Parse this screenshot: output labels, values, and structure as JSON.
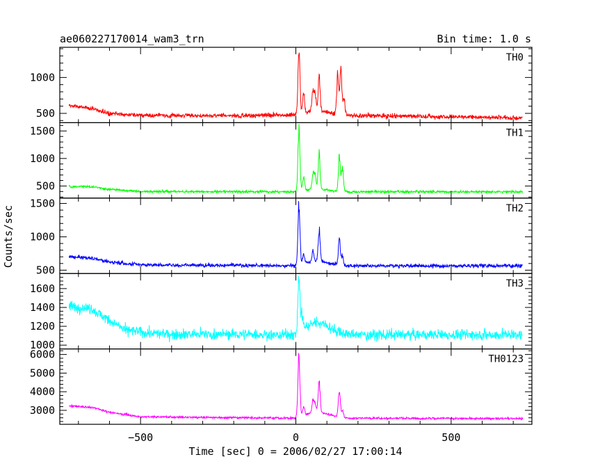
{
  "header": {
    "title": "ae060227170014_wam3_trn",
    "bin_time": "Bin time: 1.0 s"
  },
  "chart_data": {
    "type": "line",
    "xlabel": "Time [sec] 0 = 2006/02/27 17:00:14",
    "ylabel": "Counts/sec",
    "xlim": [
      -760,
      760
    ],
    "x_ticks": [
      -500,
      0,
      500
    ],
    "x_tick_labels": [
      "−500",
      "0",
      "500"
    ],
    "data_x_range": [
      -730,
      730
    ],
    "panels": [
      {
        "name": "TH0",
        "color": "#ff0000",
        "ylim": [
          370,
          1420
        ],
        "ticks": [
          500,
          1000
        ],
        "tick_labels": [
          "500",
          "1000"
        ],
        "baseline": [
          [
            -730,
            610
          ],
          [
            -650,
            560
          ],
          [
            -600,
            500
          ],
          [
            -500,
            470
          ],
          [
            -200,
            470
          ],
          [
            0,
            480
          ],
          [
            300,
            465
          ],
          [
            730,
            440
          ]
        ],
        "noise": 32,
        "peaks": [
          [
            10,
            1420
          ],
          [
            25,
            780
          ],
          [
            55,
            800
          ],
          [
            62,
            730
          ],
          [
            75,
            1030
          ],
          [
            135,
            1120
          ],
          [
            145,
            1150
          ],
          [
            155,
            760
          ]
        ]
      },
      {
        "name": "TH1",
        "color": "#00ff00",
        "ylim": [
          280,
          1650
        ],
        "ticks": [
          500,
          1000,
          1500
        ],
        "tick_labels": [
          "500",
          "1000",
          "1500"
        ],
        "baseline": [
          [
            -730,
            490
          ],
          [
            -650,
            480
          ],
          [
            -600,
            440
          ],
          [
            -500,
            400
          ],
          [
            0,
            395
          ],
          [
            730,
            395
          ]
        ],
        "noise": 22,
        "peaks": [
          [
            10,
            1650
          ],
          [
            25,
            700
          ],
          [
            55,
            720
          ],
          [
            62,
            680
          ],
          [
            75,
            1120
          ],
          [
            140,
            1100
          ],
          [
            150,
            900
          ]
        ]
      },
      {
        "name": "TH2",
        "color": "#0000ff",
        "ylim": [
          450,
          1580
        ],
        "ticks": [
          500,
          1000,
          1500
        ],
        "tick_labels": [
          "500",
          "1000",
          "1500"
        ],
        "baseline": [
          [
            -730,
            700
          ],
          [
            -650,
            680
          ],
          [
            -600,
            620
          ],
          [
            -500,
            580
          ],
          [
            0,
            565
          ],
          [
            730,
            565
          ]
        ],
        "noise": 28,
        "peaks": [
          [
            10,
            1580
          ],
          [
            25,
            720
          ],
          [
            55,
            760
          ],
          [
            75,
            1100
          ],
          [
            140,
            1000
          ],
          [
            150,
            720
          ]
        ]
      },
      {
        "name": "TH3",
        "color": "#00ffff",
        "ylim": [
          960,
          1760
        ],
        "ticks": [
          1000,
          1200,
          1400,
          1600
        ],
        "tick_labels": [
          "1000",
          "1200",
          "1400",
          "1600"
        ],
        "baseline": [
          [
            -730,
            1410
          ],
          [
            -660,
            1390
          ],
          [
            -600,
            1260
          ],
          [
            -550,
            1160
          ],
          [
            -450,
            1120
          ],
          [
            0,
            1110
          ],
          [
            730,
            1110
          ]
        ],
        "noise": 55,
        "peaks": [
          [
            10,
            1760
          ],
          [
            20,
            1300
          ]
        ]
      },
      {
        "name": "TH0123",
        "color": "#ff00ff",
        "ylim": [
          2250,
          6300
        ],
        "ticks": [
          3000,
          4000,
          5000,
          6000
        ],
        "tick_labels": [
          "3000",
          "4000",
          "5000",
          "6000"
        ],
        "baseline": [
          [
            -730,
            3250
          ],
          [
            -650,
            3150
          ],
          [
            -600,
            2900
          ],
          [
            -500,
            2650
          ],
          [
            0,
            2580
          ],
          [
            730,
            2560
          ]
        ],
        "noise": 60,
        "peaks": [
          [
            10,
            6300
          ],
          [
            25,
            3100
          ],
          [
            55,
            3300
          ],
          [
            62,
            3100
          ],
          [
            75,
            4400
          ],
          [
            140,
            4250
          ],
          [
            150,
            3000
          ]
        ]
      }
    ]
  }
}
